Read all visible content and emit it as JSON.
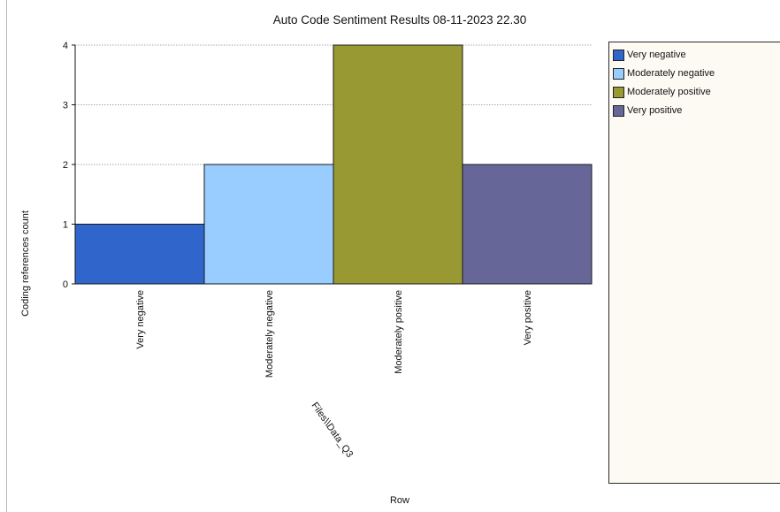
{
  "chart_data": {
    "type": "bar",
    "title": "Auto Code Sentiment Results 08-11-2023 22.30",
    "ylabel": "Coding references count",
    "xlabel": "Row",
    "category_axis_label": "Files\\\\Data_Q3",
    "categories": [
      "Very negative",
      "Moderately negative",
      "Moderately positive",
      "Very positive"
    ],
    "values": [
      1,
      2,
      4,
      2
    ],
    "colors": [
      "#3066cc",
      "#99ccff",
      "#999933",
      "#666699"
    ],
    "ylim": [
      0,
      4
    ],
    "yticks": [
      "0",
      "1",
      "2",
      "3",
      "4"
    ],
    "grid": true,
    "legend_position": "right",
    "legend": [
      "Very negative",
      "Moderately negative",
      "Moderately positive",
      "Very positive"
    ]
  }
}
